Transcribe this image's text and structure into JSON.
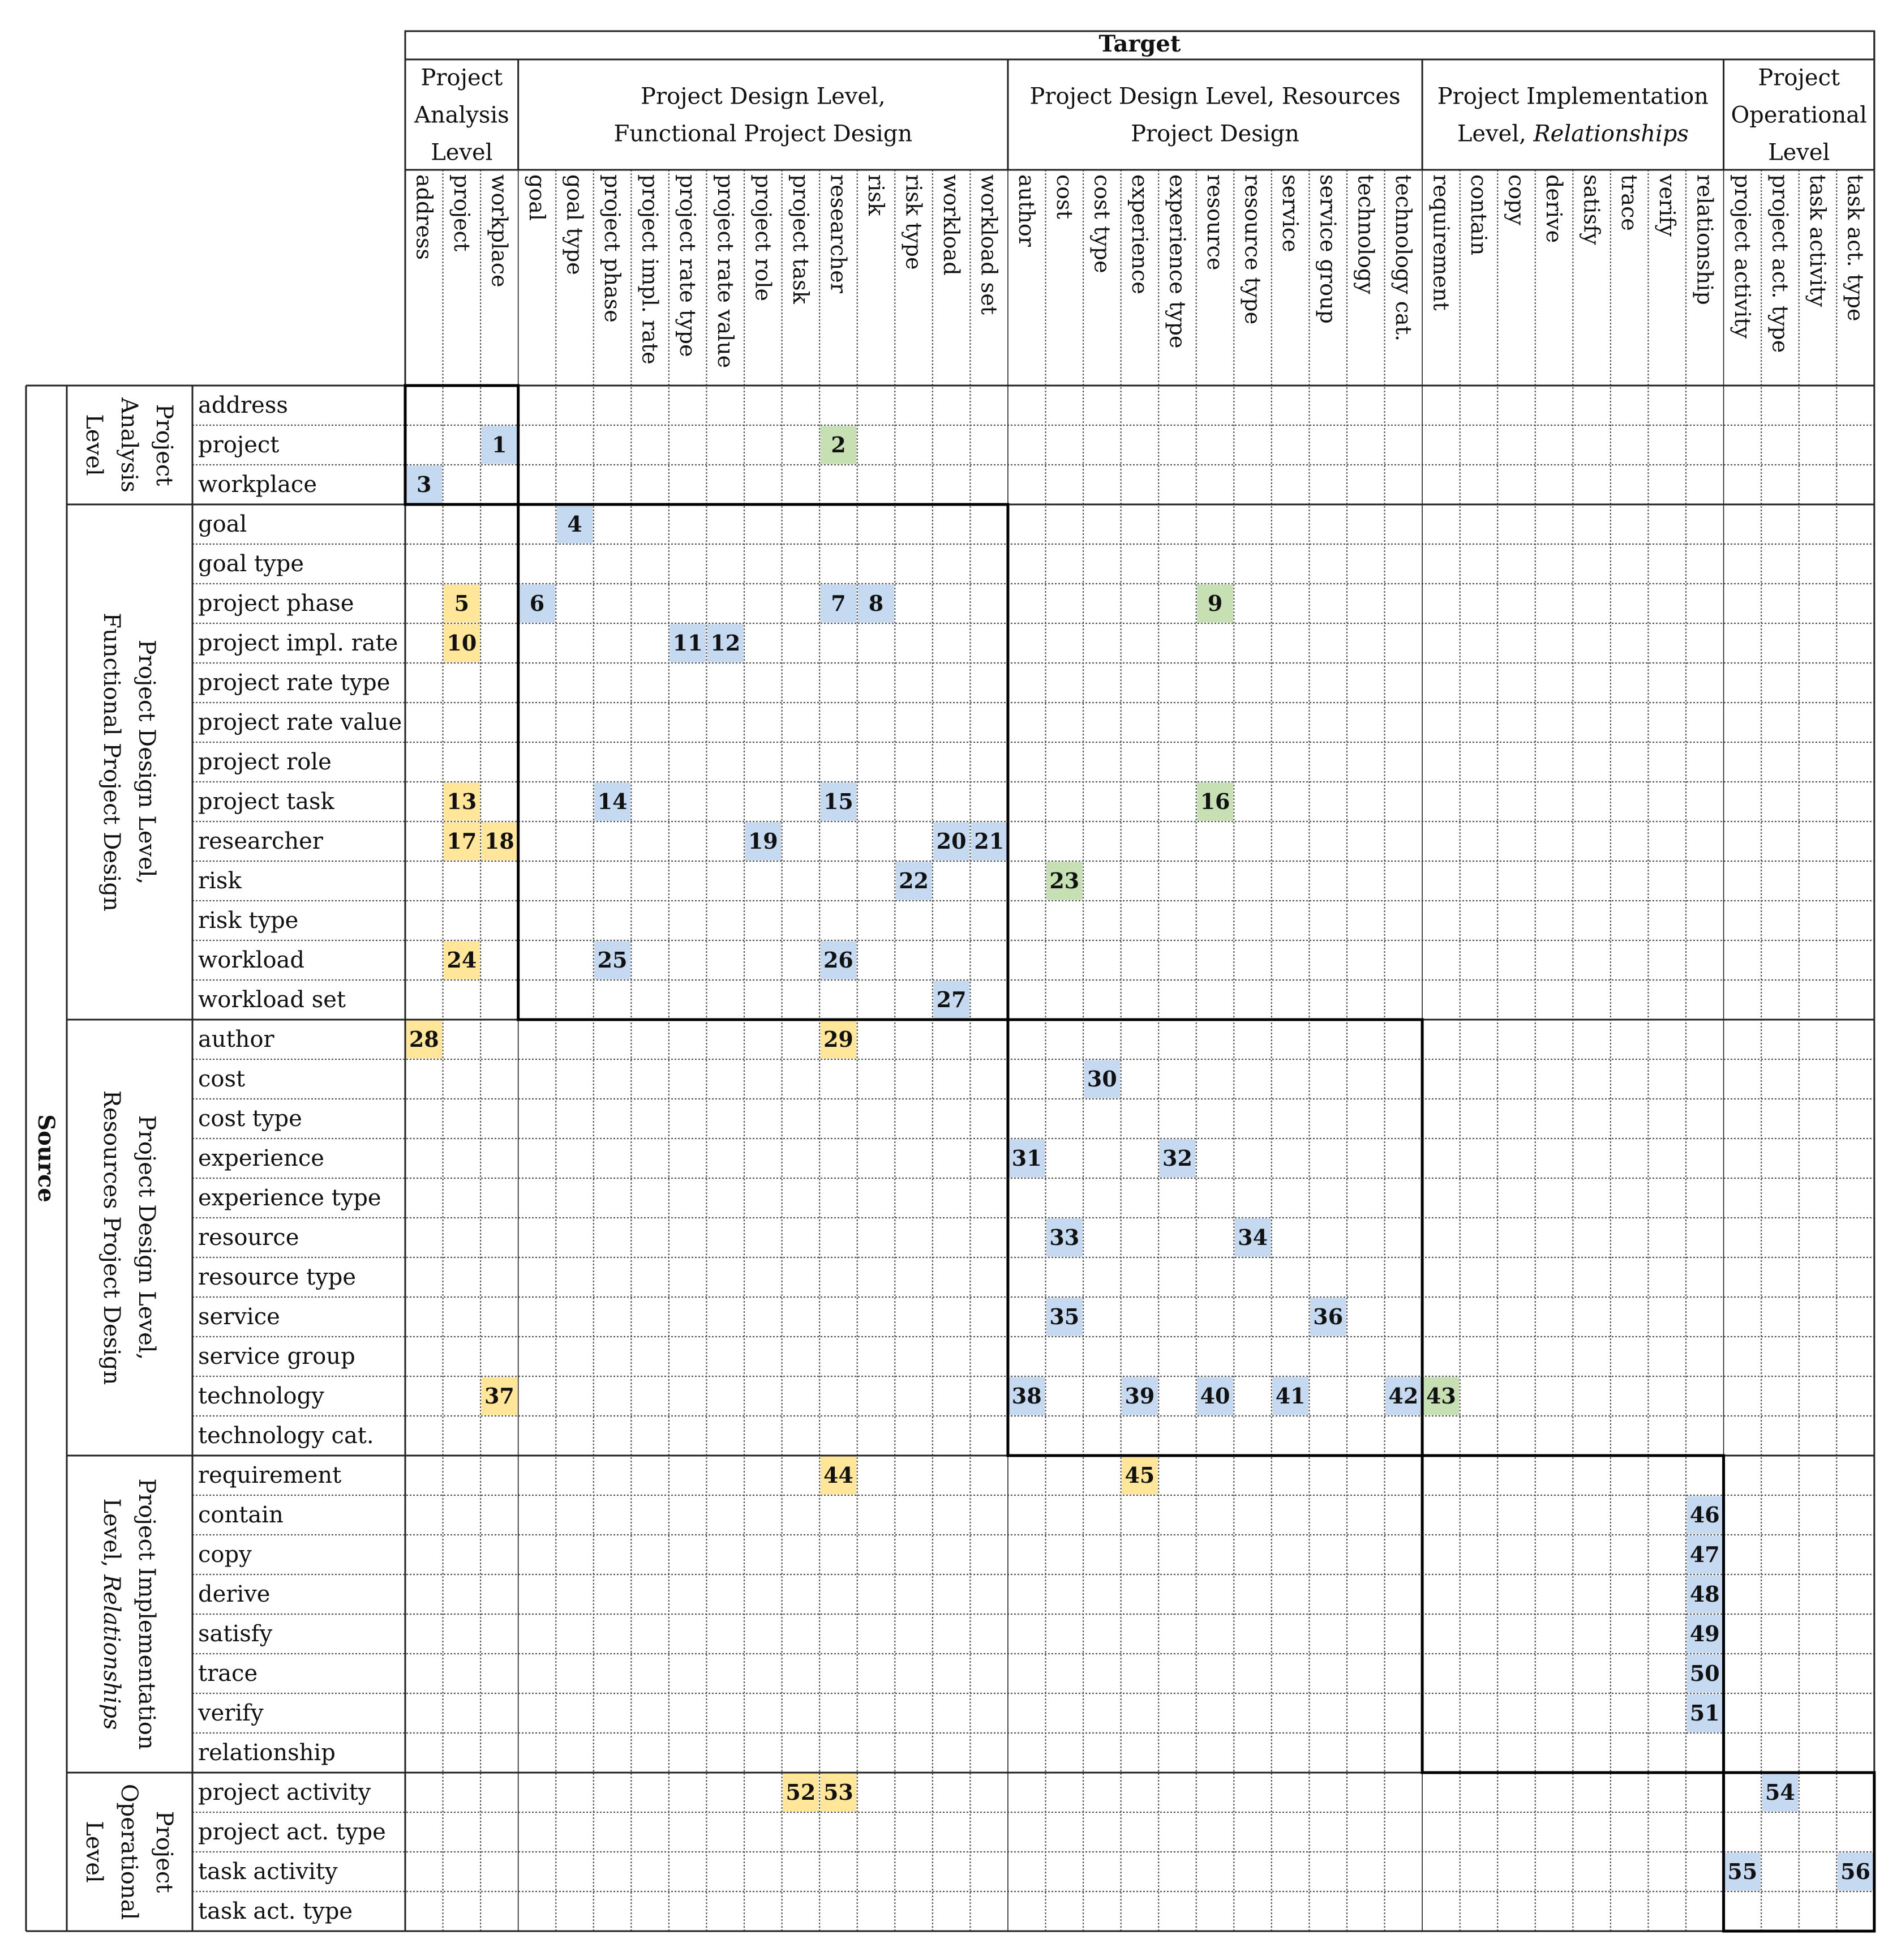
{
  "target_label": "Target",
  "source_label": "Source",
  "colors": {
    "blue": "#c5d9f1",
    "yellow": "#ffe699",
    "green": "#c6e0b4",
    "grid": "#555555",
    "frame": "#000000"
  },
  "groups": [
    {
      "id": "analysis",
      "col_lines": [
        "Project",
        "Analysis",
        "Level"
      ],
      "row_lines": [
        "Project",
        "Analysis",
        "Level"
      ],
      "row_italic": []
    },
    {
      "id": "functional",
      "col_lines": [
        "Project Design Level,",
        "Functional Project Design"
      ],
      "row_lines": [
        "Project Design Level,",
        "Functional Project Design"
      ],
      "row_italic": []
    },
    {
      "id": "resources",
      "col_lines": [
        "Project Design Level, Resources",
        "Project Design"
      ],
      "row_lines": [
        "Project Design Level,",
        "Resources Project Design"
      ],
      "row_italic": []
    },
    {
      "id": "implementation",
      "col_lines": [
        "Project Implementation",
        "Level, Relationships"
      ],
      "row_lines": [
        "Project Implementation",
        "Level, Relationships"
      ],
      "row_italic": [
        "Relationships"
      ]
    },
    {
      "id": "operational",
      "col_lines": [
        "Project",
        "Operational",
        "Level"
      ],
      "row_lines": [
        "Project",
        "Operational",
        "Level"
      ],
      "row_italic": []
    }
  ],
  "columns": [
    "address",
    "project",
    "workplace",
    "goal",
    "goal type",
    "project phase",
    "project impl. rate",
    "project rate type",
    "project rate value",
    "project role",
    "project task",
    "researcher",
    "risk",
    "risk type",
    "workload",
    "workload set",
    "author",
    "cost",
    "cost type",
    "experience",
    "experience type",
    "resource",
    "resource type",
    "service",
    "service group",
    "technology",
    "technology cat.",
    "requirement",
    "contain",
    "copy",
    "derive",
    "satisfy",
    "trace",
    "verify",
    "relationship",
    "project activity",
    "project act. type",
    "task activity",
    "task act. type"
  ],
  "rows": [
    "address",
    "project",
    "workplace",
    "goal",
    "goal type",
    "project phase",
    "project impl. rate",
    "project rate type",
    "project rate value",
    "project role",
    "project task",
    "researcher",
    "risk",
    "risk type",
    "workload",
    "workload set",
    "author",
    "cost",
    "cost type",
    "experience",
    "experience type",
    "resource",
    "resource type",
    "service",
    "service group",
    "technology",
    "technology cat.",
    "requirement",
    "contain",
    "copy",
    "derive",
    "satisfy",
    "trace",
    "verify",
    "relationship",
    "project activity",
    "project act. type",
    "task activity",
    "task act. type"
  ],
  "cells": [
    {
      "n": "1",
      "row": "project",
      "col": "workplace",
      "color": "blue"
    },
    {
      "n": "2",
      "row": "project",
      "col": "researcher",
      "color": "green"
    },
    {
      "n": "3",
      "row": "workplace",
      "col": "address",
      "color": "blue"
    },
    {
      "n": "4",
      "row": "goal",
      "col": "goal type",
      "color": "blue"
    },
    {
      "n": "5",
      "row": "project phase",
      "col": "project",
      "color": "yellow"
    },
    {
      "n": "6",
      "row": "project phase",
      "col": "goal",
      "color": "blue"
    },
    {
      "n": "7",
      "row": "project phase",
      "col": "researcher",
      "color": "blue"
    },
    {
      "n": "8",
      "row": "project phase",
      "col": "risk",
      "color": "blue"
    },
    {
      "n": "9",
      "row": "project phase",
      "col": "resource",
      "color": "green"
    },
    {
      "n": "10",
      "row": "project impl. rate",
      "col": "project",
      "color": "yellow"
    },
    {
      "n": "11",
      "row": "project impl. rate",
      "col": "project rate type",
      "color": "blue"
    },
    {
      "n": "12",
      "row": "project impl. rate",
      "col": "project rate value",
      "color": "blue"
    },
    {
      "n": "13",
      "row": "project task",
      "col": "project",
      "color": "yellow"
    },
    {
      "n": "14",
      "row": "project task",
      "col": "project phase",
      "color": "blue"
    },
    {
      "n": "15",
      "row": "project task",
      "col": "researcher",
      "color": "blue"
    },
    {
      "n": "16",
      "row": "project task",
      "col": "resource",
      "color": "green"
    },
    {
      "n": "17",
      "row": "researcher",
      "col": "project",
      "color": "yellow"
    },
    {
      "n": "18",
      "row": "researcher",
      "col": "workplace",
      "color": "yellow"
    },
    {
      "n": "19",
      "row": "researcher",
      "col": "project role",
      "color": "blue"
    },
    {
      "n": "20",
      "row": "researcher",
      "col": "workload",
      "color": "blue"
    },
    {
      "n": "21",
      "row": "researcher",
      "col": "workload set",
      "color": "blue"
    },
    {
      "n": "22",
      "row": "risk",
      "col": "risk type",
      "color": "blue"
    },
    {
      "n": "23",
      "row": "risk",
      "col": "cost",
      "color": "green"
    },
    {
      "n": "24",
      "row": "workload",
      "col": "project",
      "color": "yellow"
    },
    {
      "n": "25",
      "row": "workload",
      "col": "project phase",
      "color": "blue"
    },
    {
      "n": "26",
      "row": "workload",
      "col": "researcher",
      "color": "blue"
    },
    {
      "n": "27",
      "row": "workload set",
      "col": "workload",
      "color": "blue"
    },
    {
      "n": "28",
      "row": "author",
      "col": "address",
      "color": "yellow"
    },
    {
      "n": "29",
      "row": "author",
      "col": "researcher",
      "color": "yellow"
    },
    {
      "n": "30",
      "row": "cost",
      "col": "cost type",
      "color": "blue"
    },
    {
      "n": "31",
      "row": "experience",
      "col": "author",
      "color": "blue"
    },
    {
      "n": "32",
      "row": "experience",
      "col": "experience type",
      "color": "blue"
    },
    {
      "n": "33",
      "row": "resource",
      "col": "cost",
      "color": "blue"
    },
    {
      "n": "34",
      "row": "resource",
      "col": "resource type",
      "color": "blue"
    },
    {
      "n": "35",
      "row": "service",
      "col": "cost",
      "color": "blue"
    },
    {
      "n": "36",
      "row": "service",
      "col": "service group",
      "color": "blue"
    },
    {
      "n": "37",
      "row": "technology",
      "col": "workplace",
      "color": "yellow"
    },
    {
      "n": "38",
      "row": "technology",
      "col": "author",
      "color": "blue"
    },
    {
      "n": "39",
      "row": "technology",
      "col": "experience",
      "color": "blue"
    },
    {
      "n": "40",
      "row": "technology",
      "col": "resource",
      "color": "blue"
    },
    {
      "n": "41",
      "row": "technology",
      "col": "service",
      "color": "blue"
    },
    {
      "n": "42",
      "row": "technology",
      "col": "technology cat.",
      "color": "blue"
    },
    {
      "n": "43",
      "row": "technology",
      "col": "requirement",
      "color": "green"
    },
    {
      "n": "44",
      "row": "requirement",
      "col": "researcher",
      "color": "yellow"
    },
    {
      "n": "45",
      "row": "requirement",
      "col": "experience",
      "color": "yellow"
    },
    {
      "n": "46",
      "row": "contain",
      "col": "relationship",
      "color": "blue"
    },
    {
      "n": "47",
      "row": "copy",
      "col": "relationship",
      "color": "blue"
    },
    {
      "n": "48",
      "row": "derive",
      "col": "relationship",
      "color": "blue"
    },
    {
      "n": "49",
      "row": "satisfy",
      "col": "relationship",
      "color": "blue"
    },
    {
      "n": "50",
      "row": "trace",
      "col": "relationship",
      "color": "blue"
    },
    {
      "n": "51",
      "row": "verify",
      "col": "relationship",
      "color": "blue"
    },
    {
      "n": "52",
      "row": "project activity",
      "col": "project task",
      "color": "yellow"
    },
    {
      "n": "53",
      "row": "project activity",
      "col": "researcher",
      "color": "yellow"
    },
    {
      "n": "54",
      "row": "project activity",
      "col": "project act. type",
      "color": "blue"
    },
    {
      "n": "55",
      "row": "task activity",
      "col": "project activity",
      "color": "blue"
    },
    {
      "n": "56",
      "row": "task activity",
      "col": "task act. type",
      "color": "blue"
    }
  ]
}
